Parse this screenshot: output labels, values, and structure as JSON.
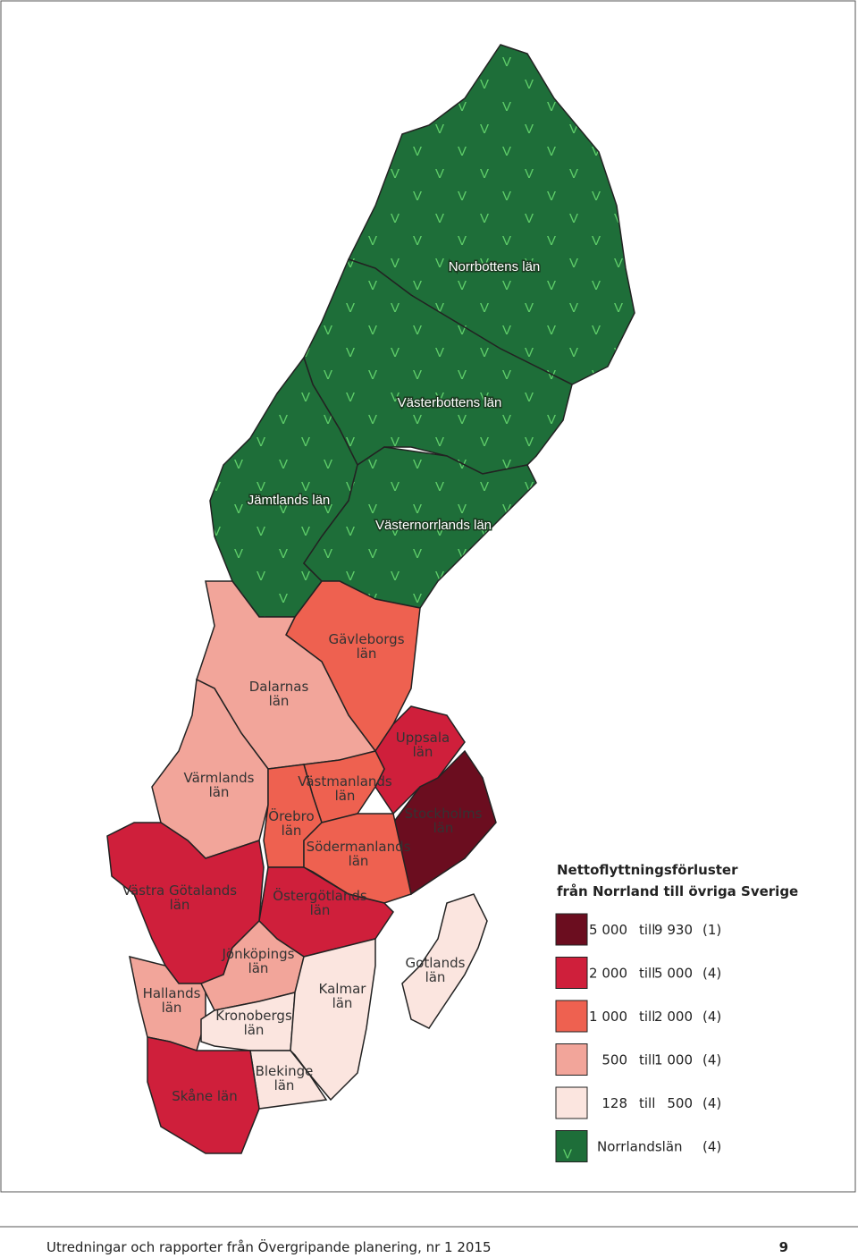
{
  "map": {
    "regions": [
      {
        "lines": [
          "Norrbottens län"
        ]
      },
      {
        "lines": [
          "Västerbottens län"
        ]
      },
      {
        "lines": [
          "Jämtlands län"
        ]
      },
      {
        "lines": [
          "Västernorrlands län"
        ]
      },
      {
        "lines": [
          "Gävleborgs",
          "län"
        ]
      },
      {
        "lines": [
          "Dalarnas",
          "län"
        ]
      },
      {
        "lines": [
          "Värmlands",
          "län"
        ]
      },
      {
        "lines": [
          "Uppsala",
          "län"
        ]
      },
      {
        "lines": [
          "Stockholms",
          "län"
        ]
      },
      {
        "lines": [
          "Västmanlands",
          "län"
        ]
      },
      {
        "lines": [
          "Örebro",
          "län"
        ]
      },
      {
        "lines": [
          "Södermanlands",
          "län"
        ]
      },
      {
        "lines": [
          "Östergötlands",
          "län"
        ]
      },
      {
        "lines": [
          "Västra Götalands",
          "län"
        ]
      },
      {
        "lines": [
          "Hallands",
          "län"
        ]
      },
      {
        "lines": [
          "Jönköpings",
          "län"
        ]
      },
      {
        "lines": [
          "Kronobergs",
          "län"
        ]
      },
      {
        "lines": [
          "Kalmar",
          "län"
        ]
      },
      {
        "lines": [
          "Blekinge",
          "län"
        ]
      },
      {
        "lines": [
          "Skåne län"
        ]
      },
      {
        "lines": [
          "Gotlands",
          "län"
        ]
      }
    ]
  },
  "legend": {
    "title": [
      "Nettoflyttningsförluster",
      "från Norrland till övriga Sverige"
    ],
    "items": [
      {
        "color": "#6b0d1f",
        "from": "5 000",
        "till": "till",
        "to": "9 930",
        "count": "(1)"
      },
      {
        "color": "#cf1f3b",
        "from": "2 000",
        "till": "till",
        "to": "5 000",
        "count": "(4)"
      },
      {
        "color": "#ee6150",
        "from": "1 000",
        "till": "till",
        "to": "2 000",
        "count": "(4)"
      },
      {
        "color": "#f2a59a",
        "from": "500",
        "till": "till",
        "to": "1 000",
        "count": "(4)"
      },
      {
        "color": "#fbe5df",
        "from": "128",
        "till": "till",
        "to": "500",
        "count": "(4)"
      },
      {
        "color": "#1e6e39",
        "symbol": "V",
        "name": "Norrlandslän",
        "count": "(4)"
      }
    ]
  },
  "footer": {
    "text": "Utredningar och rapporter från Övergripande planering, nr 1 2015",
    "page": "9"
  }
}
